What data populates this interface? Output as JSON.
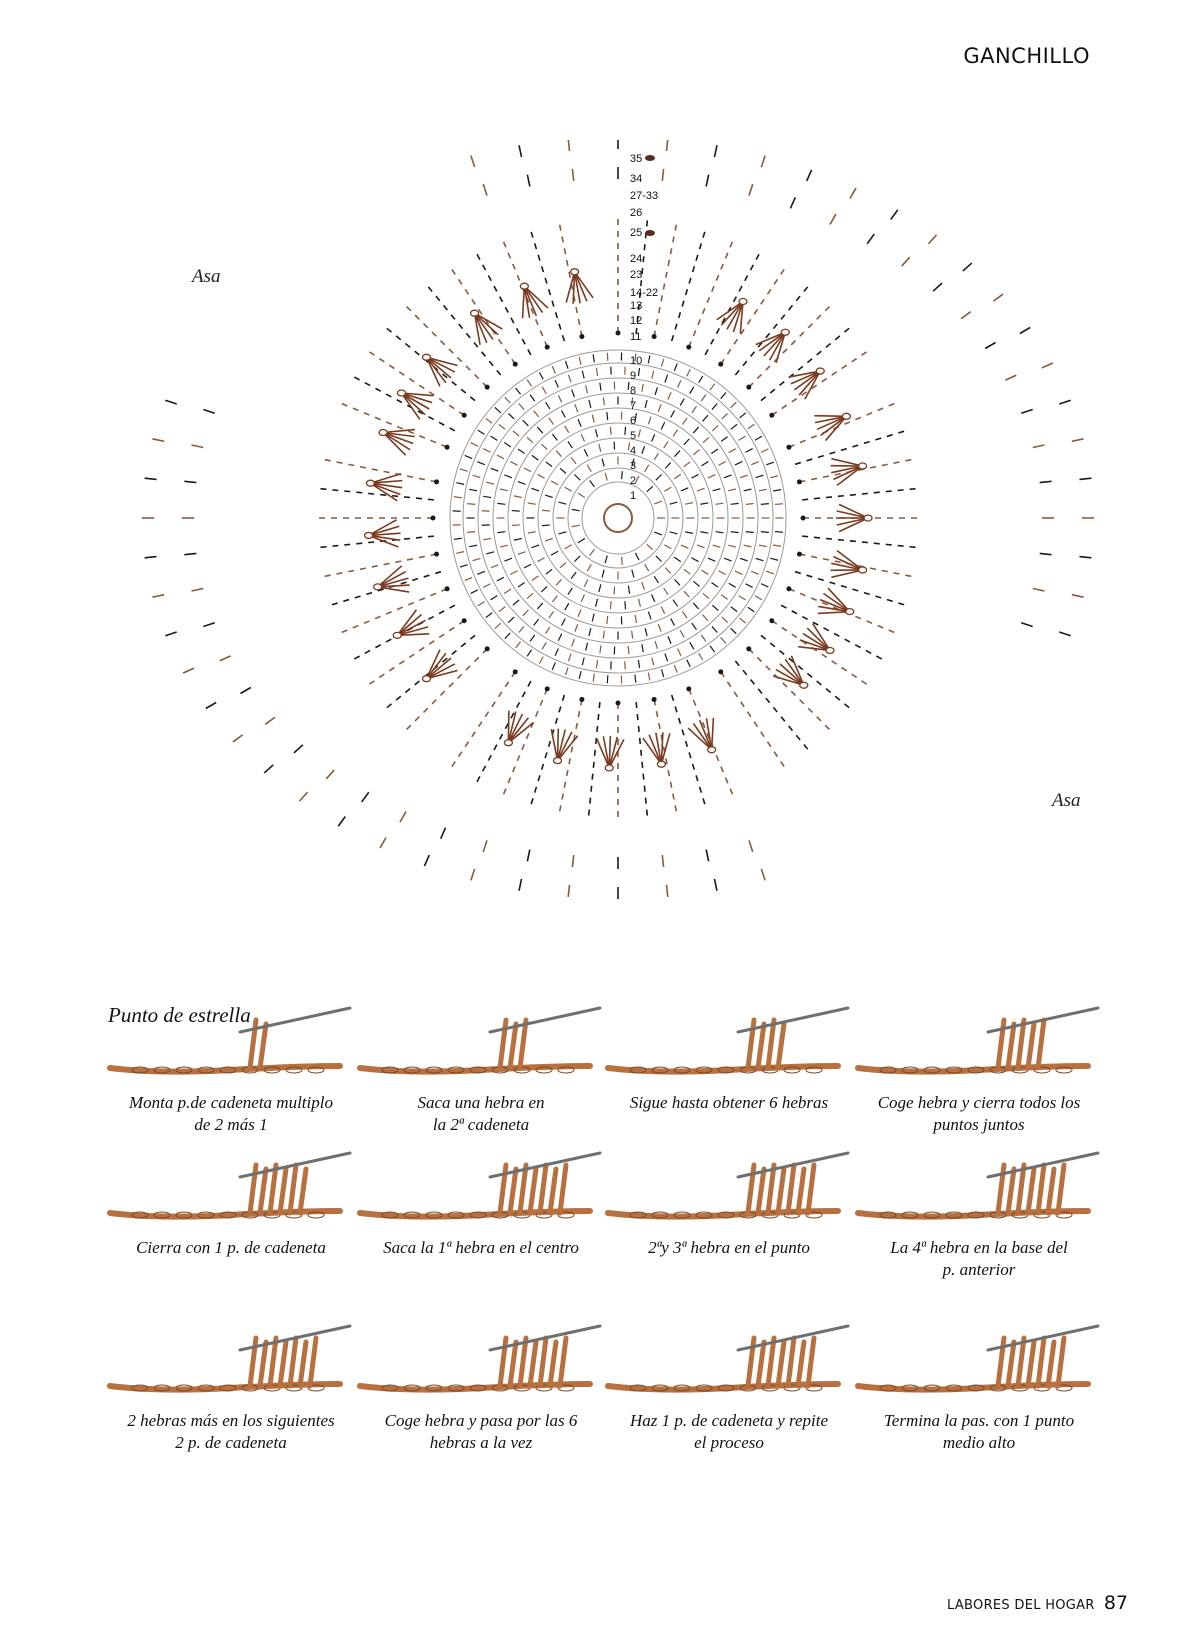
{
  "header": {
    "section": "GANCHILLO"
  },
  "chart": {
    "handle_label_left": "Asa",
    "handle_label_right": "Asa",
    "round_labels": [
      "35",
      "34",
      "27-33",
      "26",
      "25",
      "24",
      "23",
      "14-22",
      "13",
      "12",
      "11",
      "10",
      "9",
      "8",
      "7",
      "6",
      "5",
      "4",
      "3",
      "2",
      "1"
    ],
    "colors": {
      "brown": "#8b5a3c",
      "dark": "#1a1a1a",
      "ring": "#9a9a9a",
      "marker": "#5a2a1a"
    }
  },
  "steps_section": {
    "title": "Punto de estrella",
    "steps": [
      {
        "caption_1": "Monta p.de cadeneta multiplo",
        "caption_2": "de 2 más 1"
      },
      {
        "caption_1": "Saca una hebra en",
        "caption_2": "la 2ª cadeneta"
      },
      {
        "caption_1": "Sigue hasta obtener 6 hebras",
        "caption_2": ""
      },
      {
        "caption_1": "Coge hebra y cierra todos los",
        "caption_2": "puntos juntos"
      },
      {
        "caption_1": "Cierra con 1 p. de cadeneta",
        "caption_2": ""
      },
      {
        "caption_1": "Saca la 1ª hebra en el centro",
        "caption_2": ""
      },
      {
        "caption_1": "2ªy 3ª hebra en el punto",
        "caption_2": ""
      },
      {
        "caption_1": "La 4ª hebra en la base del",
        "caption_2": "p. anterior"
      },
      {
        "caption_1": "2 hebras más en los siguientes",
        "caption_2": "2 p. de cadeneta"
      },
      {
        "caption_1": "Coge hebra y pasa por las 6",
        "caption_2": "hebras a la vez"
      },
      {
        "caption_1": "Haz 1 p. de cadeneta y repite",
        "caption_2": "el proceso"
      },
      {
        "caption_1": "Termina la pas. con 1 punto",
        "caption_2": "medio alto"
      }
    ],
    "yarn_color": "#b8703f",
    "hook_color": "#6f6f6f"
  },
  "footer": {
    "magazine": "LABORES DEL HOGAR",
    "page": "87"
  }
}
